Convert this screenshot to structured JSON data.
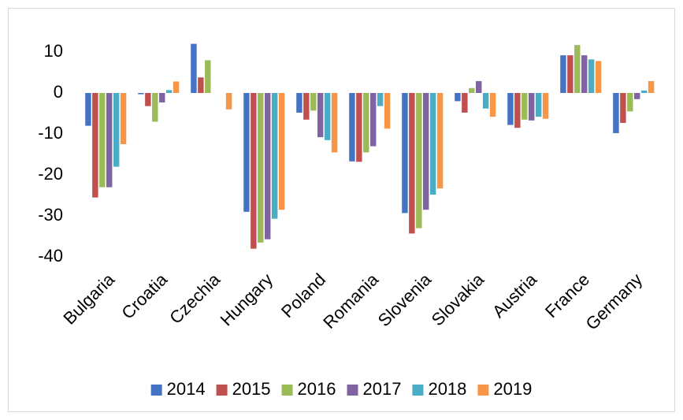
{
  "chart_data": {
    "type": "bar",
    "categories": [
      "Bulgaria",
      "Croatia",
      "Czechia",
      "Hungary",
      "Poland",
      "Romania",
      "Slovenia",
      "Slovakia",
      "Austria",
      "France",
      "Germany"
    ],
    "series": [
      {
        "name": "2014",
        "color": "#4472c4",
        "values": [
          -8,
          -0.3,
          12,
          -29,
          -4.8,
          -16.7,
          -29.3,
          -2,
          -7.8,
          9.2,
          -9.8
        ]
      },
      {
        "name": "2015",
        "color": "#c0504d",
        "values": [
          -25.5,
          -3.2,
          3.8,
          -38,
          -6.5,
          -16.8,
          -34.3,
          -4.8,
          -8.5,
          9.2,
          -7.3
        ]
      },
      {
        "name": "2016",
        "color": "#9bbb59",
        "values": [
          -23,
          -7,
          8,
          -36.5,
          -4.3,
          -14.5,
          -33,
          1.2,
          -6.5,
          11.7,
          -4.5
        ]
      },
      {
        "name": "2017",
        "color": "#8064a2",
        "values": [
          -23,
          -2.3,
          0,
          -35.7,
          -10.8,
          -13,
          -28.5,
          2.9,
          -6.7,
          9.2,
          -1.5
        ]
      },
      {
        "name": "2018",
        "color": "#4bacc6",
        "values": [
          -18,
          0.7,
          0,
          -30.7,
          -11.5,
          -3.2,
          -24.8,
          -3.8,
          -5.8,
          8.2,
          0.6
        ]
      },
      {
        "name": "2019",
        "color": "#f79646",
        "values": [
          -12.5,
          2.8,
          -4,
          -28.5,
          -14.5,
          -8.7,
          -23.3,
          -5.8,
          -6.3,
          7.8,
          2.9
        ]
      }
    ],
    "ylim": [
      -40,
      15
    ],
    "yticks": [
      -40,
      -30,
      -20,
      -10,
      0,
      10
    ],
    "grid": false,
    "legend": "bottom"
  }
}
